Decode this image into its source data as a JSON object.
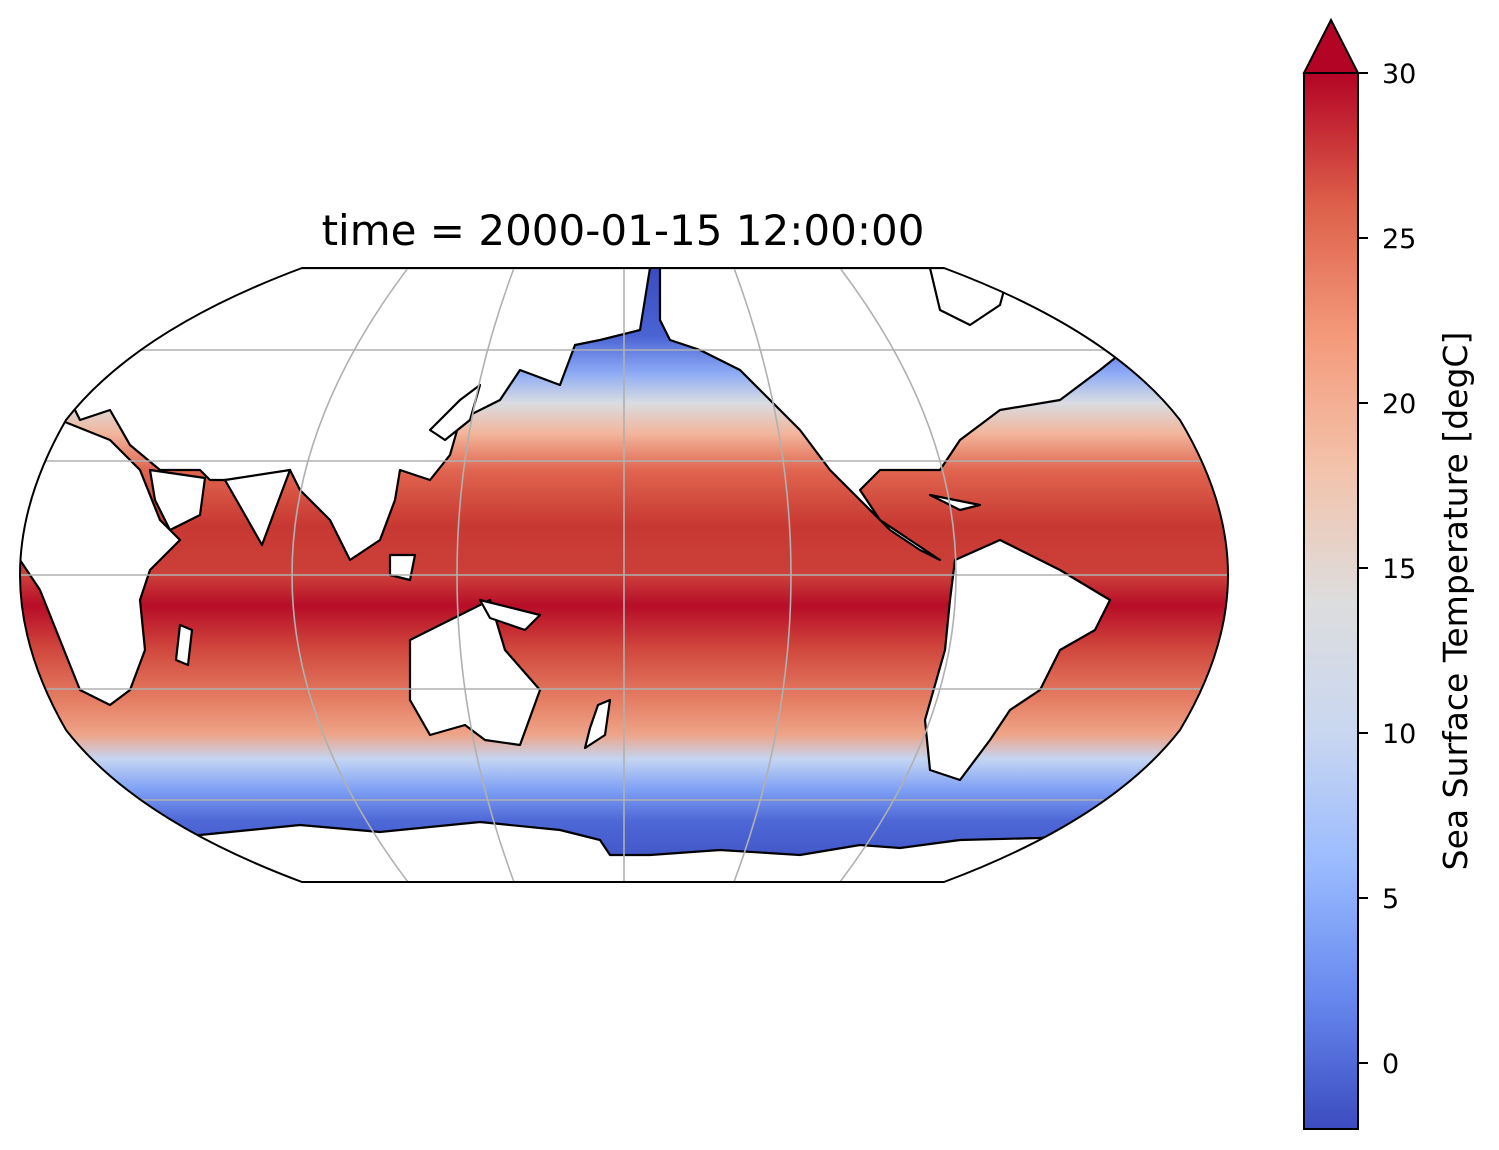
{
  "title": "time = 2000-01-15 12:00:00",
  "map": {
    "projection": "robinson",
    "central_longitude": 180,
    "gridlines": true,
    "coastlines": true,
    "land_color": "#ffffff"
  },
  "colorbar": {
    "label": "Sea Surface Temperature [degC]",
    "cmap": "coolwarm",
    "vmin": -2,
    "vmax": 30,
    "extend": "max",
    "ticks": [
      0,
      5,
      10,
      15,
      20,
      25,
      30
    ],
    "tick_labels": [
      "0",
      "5",
      "10",
      "15",
      "20",
      "25",
      "30"
    ],
    "colors": [
      "#3b4cc0",
      "#6788ee",
      "#9abbff",
      "#c9d7f0",
      "#dddddd",
      "#f3c3ab",
      "#f49a7b",
      "#dd604a",
      "#b40426"
    ]
  }
}
